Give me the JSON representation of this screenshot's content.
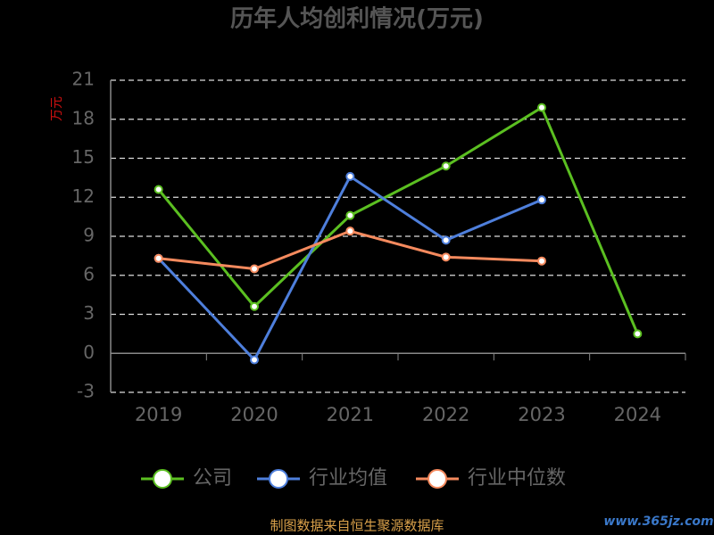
{
  "chart_data": {
    "type": "line",
    "title": "历年人均创利情况(万元)",
    "y_label": "万元",
    "categories": [
      "2019",
      "2020",
      "2021",
      "2022",
      "2023",
      "2024"
    ],
    "series": [
      {
        "name": "公司",
        "color": "#5bbf21",
        "values": [
          12.6,
          3.6,
          10.6,
          14.4,
          18.9,
          1.5
        ]
      },
      {
        "name": "行业均值",
        "color": "#4e7fdc",
        "values": [
          7.3,
          -0.5,
          13.6,
          8.7,
          11.8,
          null
        ]
      },
      {
        "name": "行业中位数",
        "color": "#f58a5e",
        "values": [
          7.3,
          6.5,
          9.4,
          7.4,
          7.1,
          null
        ]
      }
    ],
    "ylim": [
      -3,
      21
    ],
    "yticks": [
      -3,
      0,
      3,
      6,
      9,
      12,
      15,
      18,
      21
    ],
    "grid": true,
    "source": "制图数据来自恒生聚源数据库",
    "watermark": "www.365jz.com"
  }
}
